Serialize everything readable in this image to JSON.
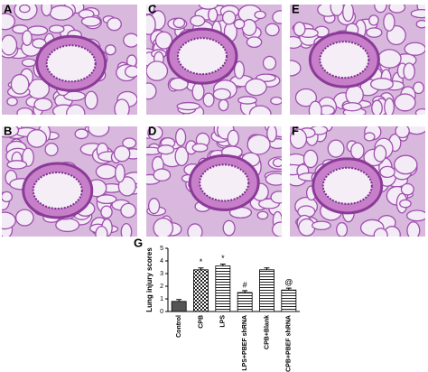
{
  "panels": [
    {
      "label": "A"
    },
    {
      "label": "C"
    },
    {
      "label": "E"
    },
    {
      "label": "B"
    },
    {
      "label": "D"
    },
    {
      "label": "F"
    }
  ],
  "chart_data": {
    "type": "bar",
    "panel_label": "G",
    "ylabel": "Lung injury scores",
    "categories": [
      "Control",
      "CPB",
      "LPS",
      "LPS+PBEF shRNA",
      "CPB+Blank",
      "CPB+PBEF shRNA"
    ],
    "values": [
      0.8,
      3.3,
      3.6,
      1.5,
      3.3,
      1.7
    ],
    "errors": [
      0.15,
      0.15,
      0.15,
      0.15,
      0.15,
      0.15
    ],
    "annotations": [
      null,
      "*",
      "*",
      "#",
      null,
      "@"
    ],
    "patterns": [
      "solid",
      "checker",
      "hlines",
      "hlines",
      "hlines",
      "hlines"
    ],
    "color": "#555555",
    "ylim": [
      0,
      5
    ],
    "yticks": [
      0,
      1,
      2,
      3,
      4,
      5
    ]
  }
}
